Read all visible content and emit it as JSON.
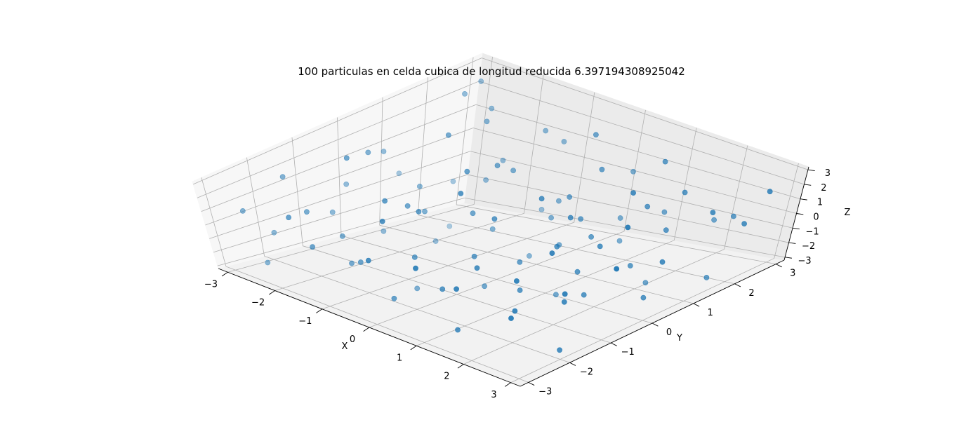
{
  "chart_data": {
    "type": "scatter",
    "projection": "3d",
    "title": "100 particulas en celda cubica de longitud reducida 6.397194308925042",
    "xlabel": "X",
    "ylabel": "Y",
    "zlabel": "Z",
    "xlim": [
      -3.2,
      3.2
    ],
    "ylim": [
      -3.2,
      3.2
    ],
    "zlim": [
      -3.2,
      3.2
    ],
    "xticks": [
      "−3",
      "−2",
      "−1",
      "0",
      "1",
      "2",
      "3"
    ],
    "yticks": [
      "−3",
      "−2",
      "−1",
      "0",
      "1",
      "2",
      "3"
    ],
    "zticks": [
      "−3",
      "−2",
      "−1",
      "0",
      "1",
      "2",
      "3"
    ],
    "grid": true,
    "marker_color": "#1f77b4",
    "particles": [
      [
        -3.0,
        3.0,
        2.3
      ],
      [
        -2.5,
        2.7,
        1.7
      ],
      [
        -2.8,
        2.4,
        2.4
      ],
      [
        -2.0,
        2.0,
        2.1
      ],
      [
        -1.5,
        2.8,
        1.3
      ],
      [
        -3.0,
        1.2,
        -0.6
      ],
      [
        -2.8,
        -0.3,
        0.2
      ],
      [
        -3.0,
        -2.5,
        0.5
      ],
      [
        -2.5,
        -1.0,
        -0.5
      ],
      [
        -2.0,
        0.5,
        0.1
      ],
      [
        -1.6,
        -1.8,
        -0.2
      ],
      [
        -2.3,
        -2.9,
        -1.8
      ],
      [
        -1.2,
        -0.7,
        1.0
      ],
      [
        -1.0,
        1.5,
        0.9
      ],
      [
        -0.5,
        0.0,
        0.5
      ],
      [
        -0.3,
        1.8,
        -0.5
      ],
      [
        0.3,
        1.3,
        0.8
      ],
      [
        -0.8,
        -2.3,
        -0.4
      ],
      [
        0.4,
        -1.0,
        -0.1
      ],
      [
        0.8,
        -0.4,
        -0.8
      ],
      [
        1.2,
        0.8,
        -0.2
      ],
      [
        0.7,
        2.1,
        -1.0
      ],
      [
        1.5,
        1.7,
        0.9
      ],
      [
        1.8,
        0.3,
        0.5
      ],
      [
        2.2,
        -0.5,
        -1.4
      ],
      [
        2.5,
        -1.3,
        -0.3
      ],
      [
        2.8,
        0.6,
        0.1
      ],
      [
        3.0,
        -2.0,
        -2.4
      ],
      [
        2.6,
        -2.6,
        0.8
      ],
      [
        2.0,
        -1.8,
        1.5
      ],
      [
        1.4,
        -2.5,
        1.1
      ],
      [
        0.0,
        -2.9,
        1.8
      ],
      [
        -0.5,
        -2.0,
        2.6
      ],
      [
        0.2,
        2.9,
        0.4
      ],
      [
        1.0,
        2.6,
        2.0
      ],
      [
        1.7,
        2.3,
        1.2
      ],
      [
        2.4,
        2.7,
        -0.2
      ],
      [
        3.0,
        2.2,
        0.6
      ],
      [
        3.0,
        1.5,
        -2.2
      ],
      [
        2.2,
        1.0,
        -2.6
      ],
      [
        1.3,
        -0.1,
        -2.9
      ],
      [
        0.5,
        -0.9,
        -2.2
      ],
      [
        -0.4,
        -1.5,
        -2.7
      ],
      [
        -1.5,
        0.3,
        -2.4
      ],
      [
        -2.1,
        1.4,
        -2.8
      ],
      [
        -1.0,
        2.3,
        -1.9
      ],
      [
        0.0,
        0.8,
        -2.5
      ],
      [
        0.9,
        1.9,
        -2.0
      ],
      [
        1.9,
        2.9,
        -1.1
      ],
      [
        2.9,
        0.1,
        -1.7
      ],
      [
        3.1,
        -0.8,
        2.4
      ],
      [
        2.4,
        0.2,
        2.8
      ],
      [
        1.6,
        1.2,
        2.6
      ],
      [
        0.6,
        0.3,
        2.3
      ],
      [
        -0.2,
        -0.6,
        2.9
      ],
      [
        -1.1,
        -1.3,
        2.2
      ],
      [
        -1.8,
        0.9,
        2.7
      ],
      [
        -2.6,
        0.0,
        1.9
      ],
      [
        -3.1,
        -1.4,
        1.4
      ],
      [
        -2.2,
        -1.9,
        0.8
      ],
      [
        -1.4,
        -2.7,
        0.4
      ],
      [
        -0.6,
        0.6,
        -1.2
      ],
      [
        0.2,
        -0.3,
        1.3
      ],
      [
        1.0,
        -1.6,
        0.7
      ],
      [
        1.9,
        -0.9,
        2.0
      ],
      [
        2.7,
        -1.5,
        1.0
      ],
      [
        0.3,
        2.0,
        1.6
      ],
      [
        -0.9,
        1.0,
        1.8
      ],
      [
        -1.7,
        2.1,
        0.3
      ],
      [
        -2.4,
        1.8,
        -1.0
      ],
      [
        -1.9,
        -0.5,
        -1.5
      ],
      [
        -1.1,
        -2.2,
        -1.0
      ],
      [
        -0.2,
        -1.7,
        0.0
      ],
      [
        0.7,
        -2.1,
        -0.6
      ],
      [
        1.6,
        -2.8,
        -1.5
      ],
      [
        2.3,
        -2.2,
        0.2
      ],
      [
        1.1,
        0.4,
        1.5
      ],
      [
        -0.3,
        2.5,
        2.4
      ],
      [
        0.8,
        1.0,
        0.3
      ],
      [
        -1.3,
        -0.2,
        0.0
      ],
      [
        2.0,
        1.6,
        0.0
      ],
      [
        -2.9,
        0.7,
        1.0
      ],
      [
        -0.7,
        -1.0,
        1.6
      ],
      [
        1.3,
        2.4,
        -0.5
      ],
      [
        0.1,
        -2.6,
        -1.5
      ],
      [
        2.9,
        2.8,
        1.8
      ],
      [
        -1.6,
        1.6,
        -0.2
      ],
      [
        0.5,
        0.9,
        -1.5
      ],
      [
        1.5,
        -1.2,
        -0.9
      ],
      [
        -2.7,
        -2.2,
        -0.9
      ],
      [
        2.6,
        1.9,
        1.4
      ],
      [
        -0.8,
        0.2,
        2.5
      ],
      [
        1.8,
        -0.2,
        -0.6
      ],
      [
        -1.2,
        2.9,
        0.9
      ],
      [
        0.9,
        -2.8,
        2.5
      ],
      [
        -2.3,
        -0.8,
        2.8
      ],
      [
        2.1,
        0.7,
        -1.1
      ],
      [
        -0.1,
        1.4,
        -0.9
      ],
      [
        -1.9,
        -2.6,
        1.7
      ],
      [
        1.2,
        0.0,
        0.2
      ]
    ]
  }
}
